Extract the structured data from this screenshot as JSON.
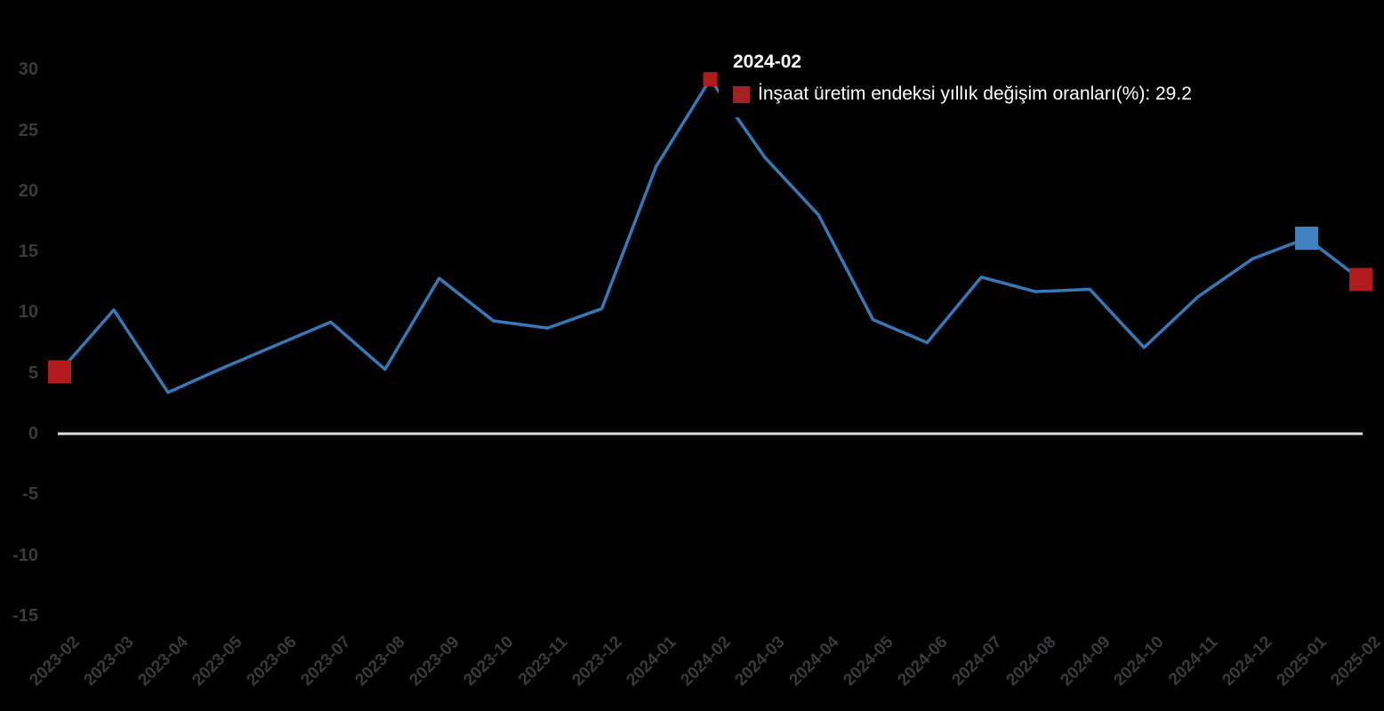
{
  "chart_data": {
    "type": "line",
    "title": "",
    "xlabel": "",
    "ylabel": "",
    "x": [
      "2023-02",
      "2023-03",
      "2023-04",
      "2023-05",
      "2023-06",
      "2023-07",
      "2023-08",
      "2023-09",
      "2023-10",
      "2023-11",
      "2023-12",
      "2024-01",
      "2024-02",
      "2024-03",
      "2024-04",
      "2024-05",
      "2024-06",
      "2024-07",
      "2024-08",
      "2024-09",
      "2024-10",
      "2024-11",
      "2024-12",
      "2025-01",
      "2025-02"
    ],
    "series": [
      {
        "name": "İnşaat üretim endeksi yıllık değişim oranları(%)",
        "values": [
          5.1,
          10.2,
          3.4,
          5.4,
          7.3,
          9.2,
          5.3,
          12.8,
          9.3,
          8.7,
          10.3,
          22.0,
          29.2,
          22.8,
          18.0,
          9.4,
          7.5,
          12.9,
          11.7,
          11.9,
          7.1,
          11.3,
          14.4,
          16.1,
          12.7
        ]
      }
    ],
    "ylim": [
      -15,
      30
    ],
    "yticks": [
      30,
      25,
      20,
      15,
      10,
      5,
      0,
      -5,
      -10,
      -15
    ],
    "grid": false,
    "legend_position": "none",
    "zero_baseline": true,
    "markers": [
      {
        "category": "2023-02",
        "color": "red",
        "size": 26
      },
      {
        "category": "2024-02",
        "color": "red",
        "size": 16
      },
      {
        "category": "2025-01",
        "color": "blue",
        "size": 26
      },
      {
        "category": "2025-02",
        "color": "red",
        "size": 26
      }
    ]
  },
  "tooltip": {
    "title": "2024-02",
    "series": "İnşaat üretim endeksi yıllık değişim oranları(%)",
    "value": "29.2",
    "text": "İnşaat üretim endeksi yıllık değişim oranları(%): 29.2"
  },
  "colors": {
    "background": "#000000",
    "line": "#3579B8",
    "marker_red": "#B11B1E",
    "marker_blue": "#3E83C0",
    "swatch_red": "#A32125",
    "axis_label": "#3A3A3F",
    "zero_line": "#E0E0E0",
    "tooltip_text": "#FFFFFF"
  }
}
